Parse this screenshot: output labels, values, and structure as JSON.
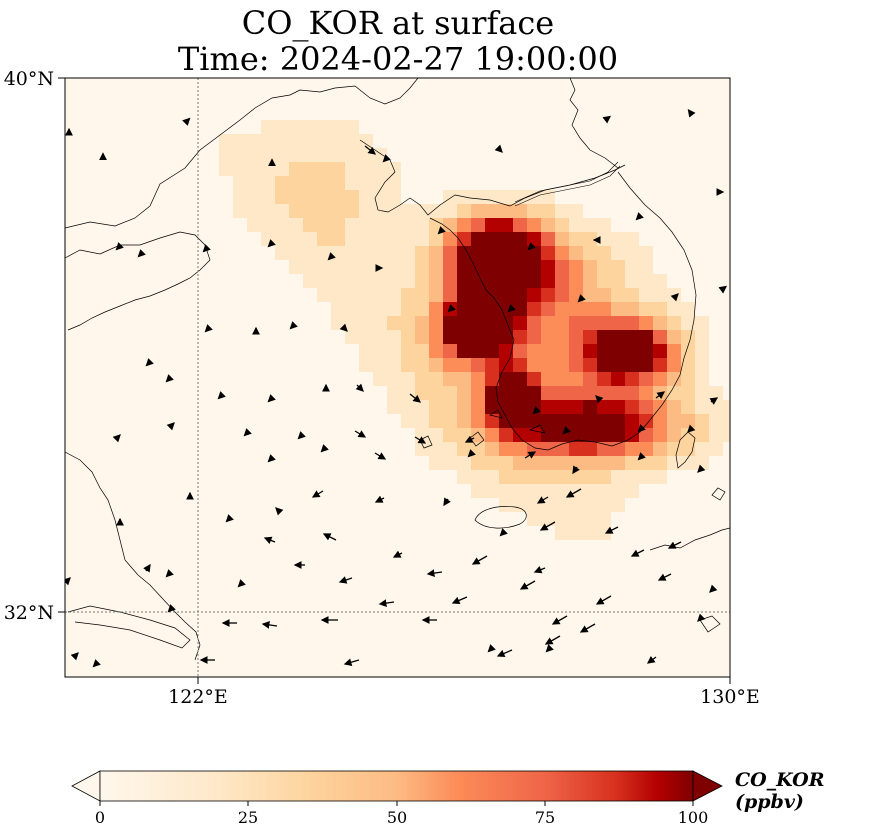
{
  "title": {
    "line1": "CO_KOR at surface",
    "line2": "Time: 2024-02-27 19:00:00"
  },
  "map": {
    "lat_labels": [
      "40°N",
      "32°N"
    ],
    "lon_labels": [
      "122°E",
      "130°E"
    ],
    "extent": {
      "lon_min": 120,
      "lon_max": 130,
      "lat_min": 31,
      "lat_max": 40
    },
    "gridlines": {
      "lons": [
        122
      ],
      "lats": [
        32
      ],
      "style": "dotted"
    },
    "colormap": "OrRd",
    "colors": {
      "low": "#fff7ec",
      "mid": "#fdbb84",
      "high": "#7f0000"
    }
  },
  "colorbar": {
    "label": "CO_KOR (ppbv)",
    "ticks": [
      "0",
      "25",
      "50",
      "75",
      "100"
    ],
    "range": [
      0,
      100
    ],
    "extend": "both"
  }
}
